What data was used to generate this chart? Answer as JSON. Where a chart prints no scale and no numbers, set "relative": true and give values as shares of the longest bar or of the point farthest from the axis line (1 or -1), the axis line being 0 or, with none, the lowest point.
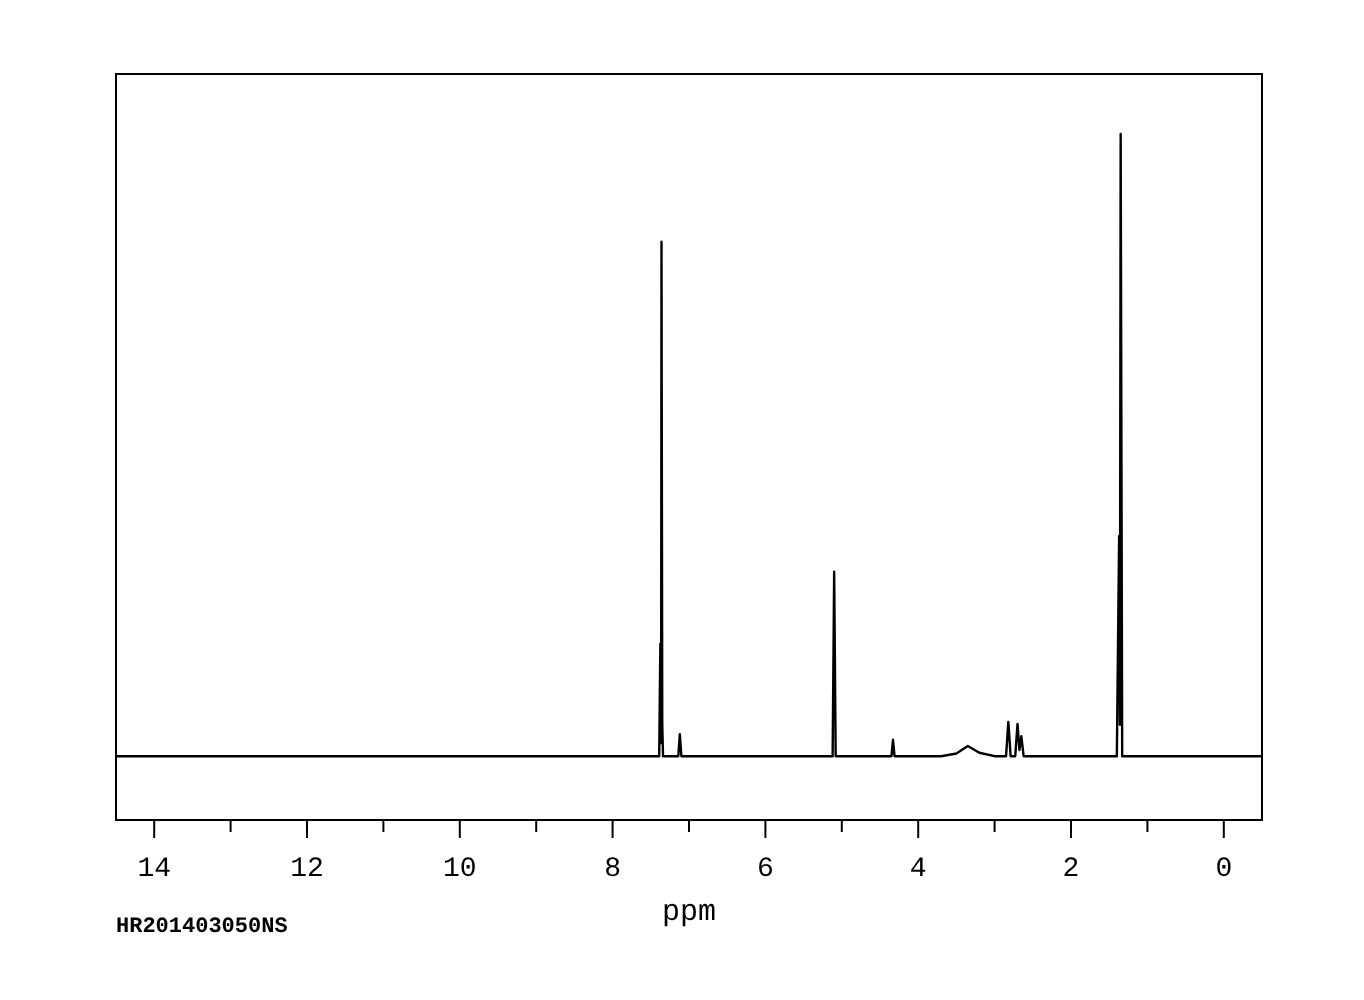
{
  "chart_data": {
    "type": "line",
    "relative": true,
    "xlabel": "ppm",
    "xlim": [
      14.5,
      -0.5
    ],
    "xticks": [
      14,
      {
        "value": 13,
        "label": null
      },
      12,
      {
        "value": 11,
        "label": null
      },
      10,
      {
        "value": 9,
        "label": null
      },
      8,
      {
        "value": 7,
        "label": null
      },
      6,
      {
        "value": 5,
        "label": null
      },
      4,
      {
        "value": 3,
        "label": null
      },
      2,
      {
        "value": 1,
        "label": null
      },
      0
    ],
    "grid": false,
    "marker": "none",
    "line_style": "solid",
    "annotations": [
      "HR201403050NS"
    ],
    "series": [
      {
        "color": "#000000",
        "x": [
          14.5,
          7.39,
          7.375,
          7.365,
          7.36,
          7.35,
          7.34,
          7.14,
          7.12,
          7.1,
          5.12,
          5.1,
          5.08,
          4.35,
          4.33,
          4.31,
          3.7,
          3.5,
          3.35,
          3.2,
          3.0,
          2.85,
          2.82,
          2.79,
          2.73,
          2.7,
          2.675,
          2.65,
          2.62,
          1.4,
          1.37,
          1.36,
          1.35,
          1.33,
          -0.5
        ],
        "values": [
          0.093,
          0.093,
          0.257,
          0.112,
          0.843,
          0.139,
          0.093,
          0.093,
          0.125,
          0.093,
          0.093,
          0.362,
          0.093,
          0.093,
          0.117,
          0.093,
          0.093,
          0.097,
          0.108,
          0.098,
          0.093,
          0.093,
          0.143,
          0.093,
          0.093,
          0.14,
          0.102,
          0.122,
          0.093,
          0.093,
          0.414,
          0.139,
          1,
          0.093,
          0.093
        ]
      }
    ]
  }
}
